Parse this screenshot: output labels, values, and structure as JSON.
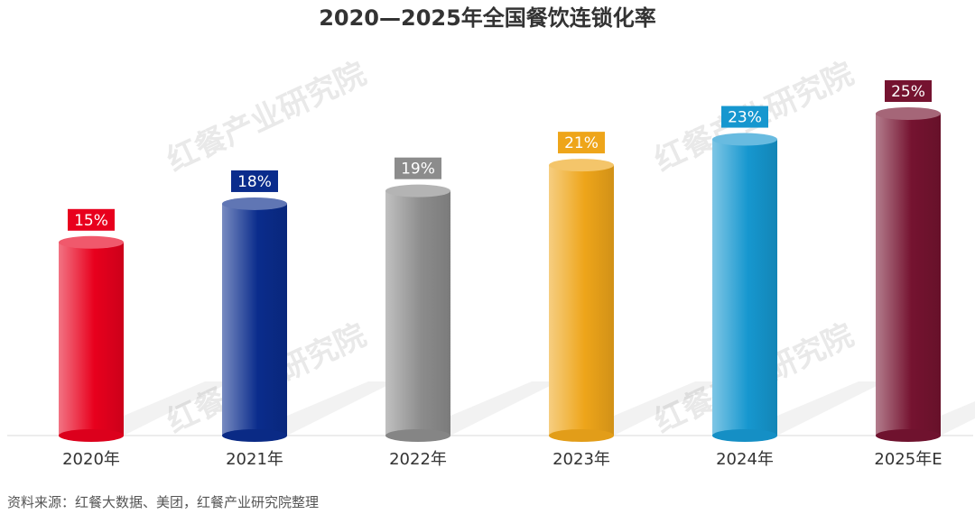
{
  "watermark": "红餐产业研究院",
  "source_note": "资料来源：红餐大数据、美团，红餐产业研究院整理",
  "chart_data": {
    "type": "bar",
    "title": "2020—2025年全国餐饮连锁化率",
    "categories": [
      "2020年",
      "2021年",
      "2022年",
      "2023年",
      "2024年",
      "2025年E"
    ],
    "values": [
      15,
      18,
      19,
      21,
      23,
      25
    ],
    "value_labels": [
      "15%",
      "18%",
      "19%",
      "21%",
      "23%",
      "25%"
    ],
    "colors": [
      "#e8001d",
      "#0a2c8c",
      "#8c8c8c",
      "#eea51a",
      "#1697cf",
      "#751330"
    ],
    "xlabel": "",
    "ylabel": "",
    "ylim": [
      0,
      25
    ],
    "grid": false,
    "legend": "none"
  }
}
